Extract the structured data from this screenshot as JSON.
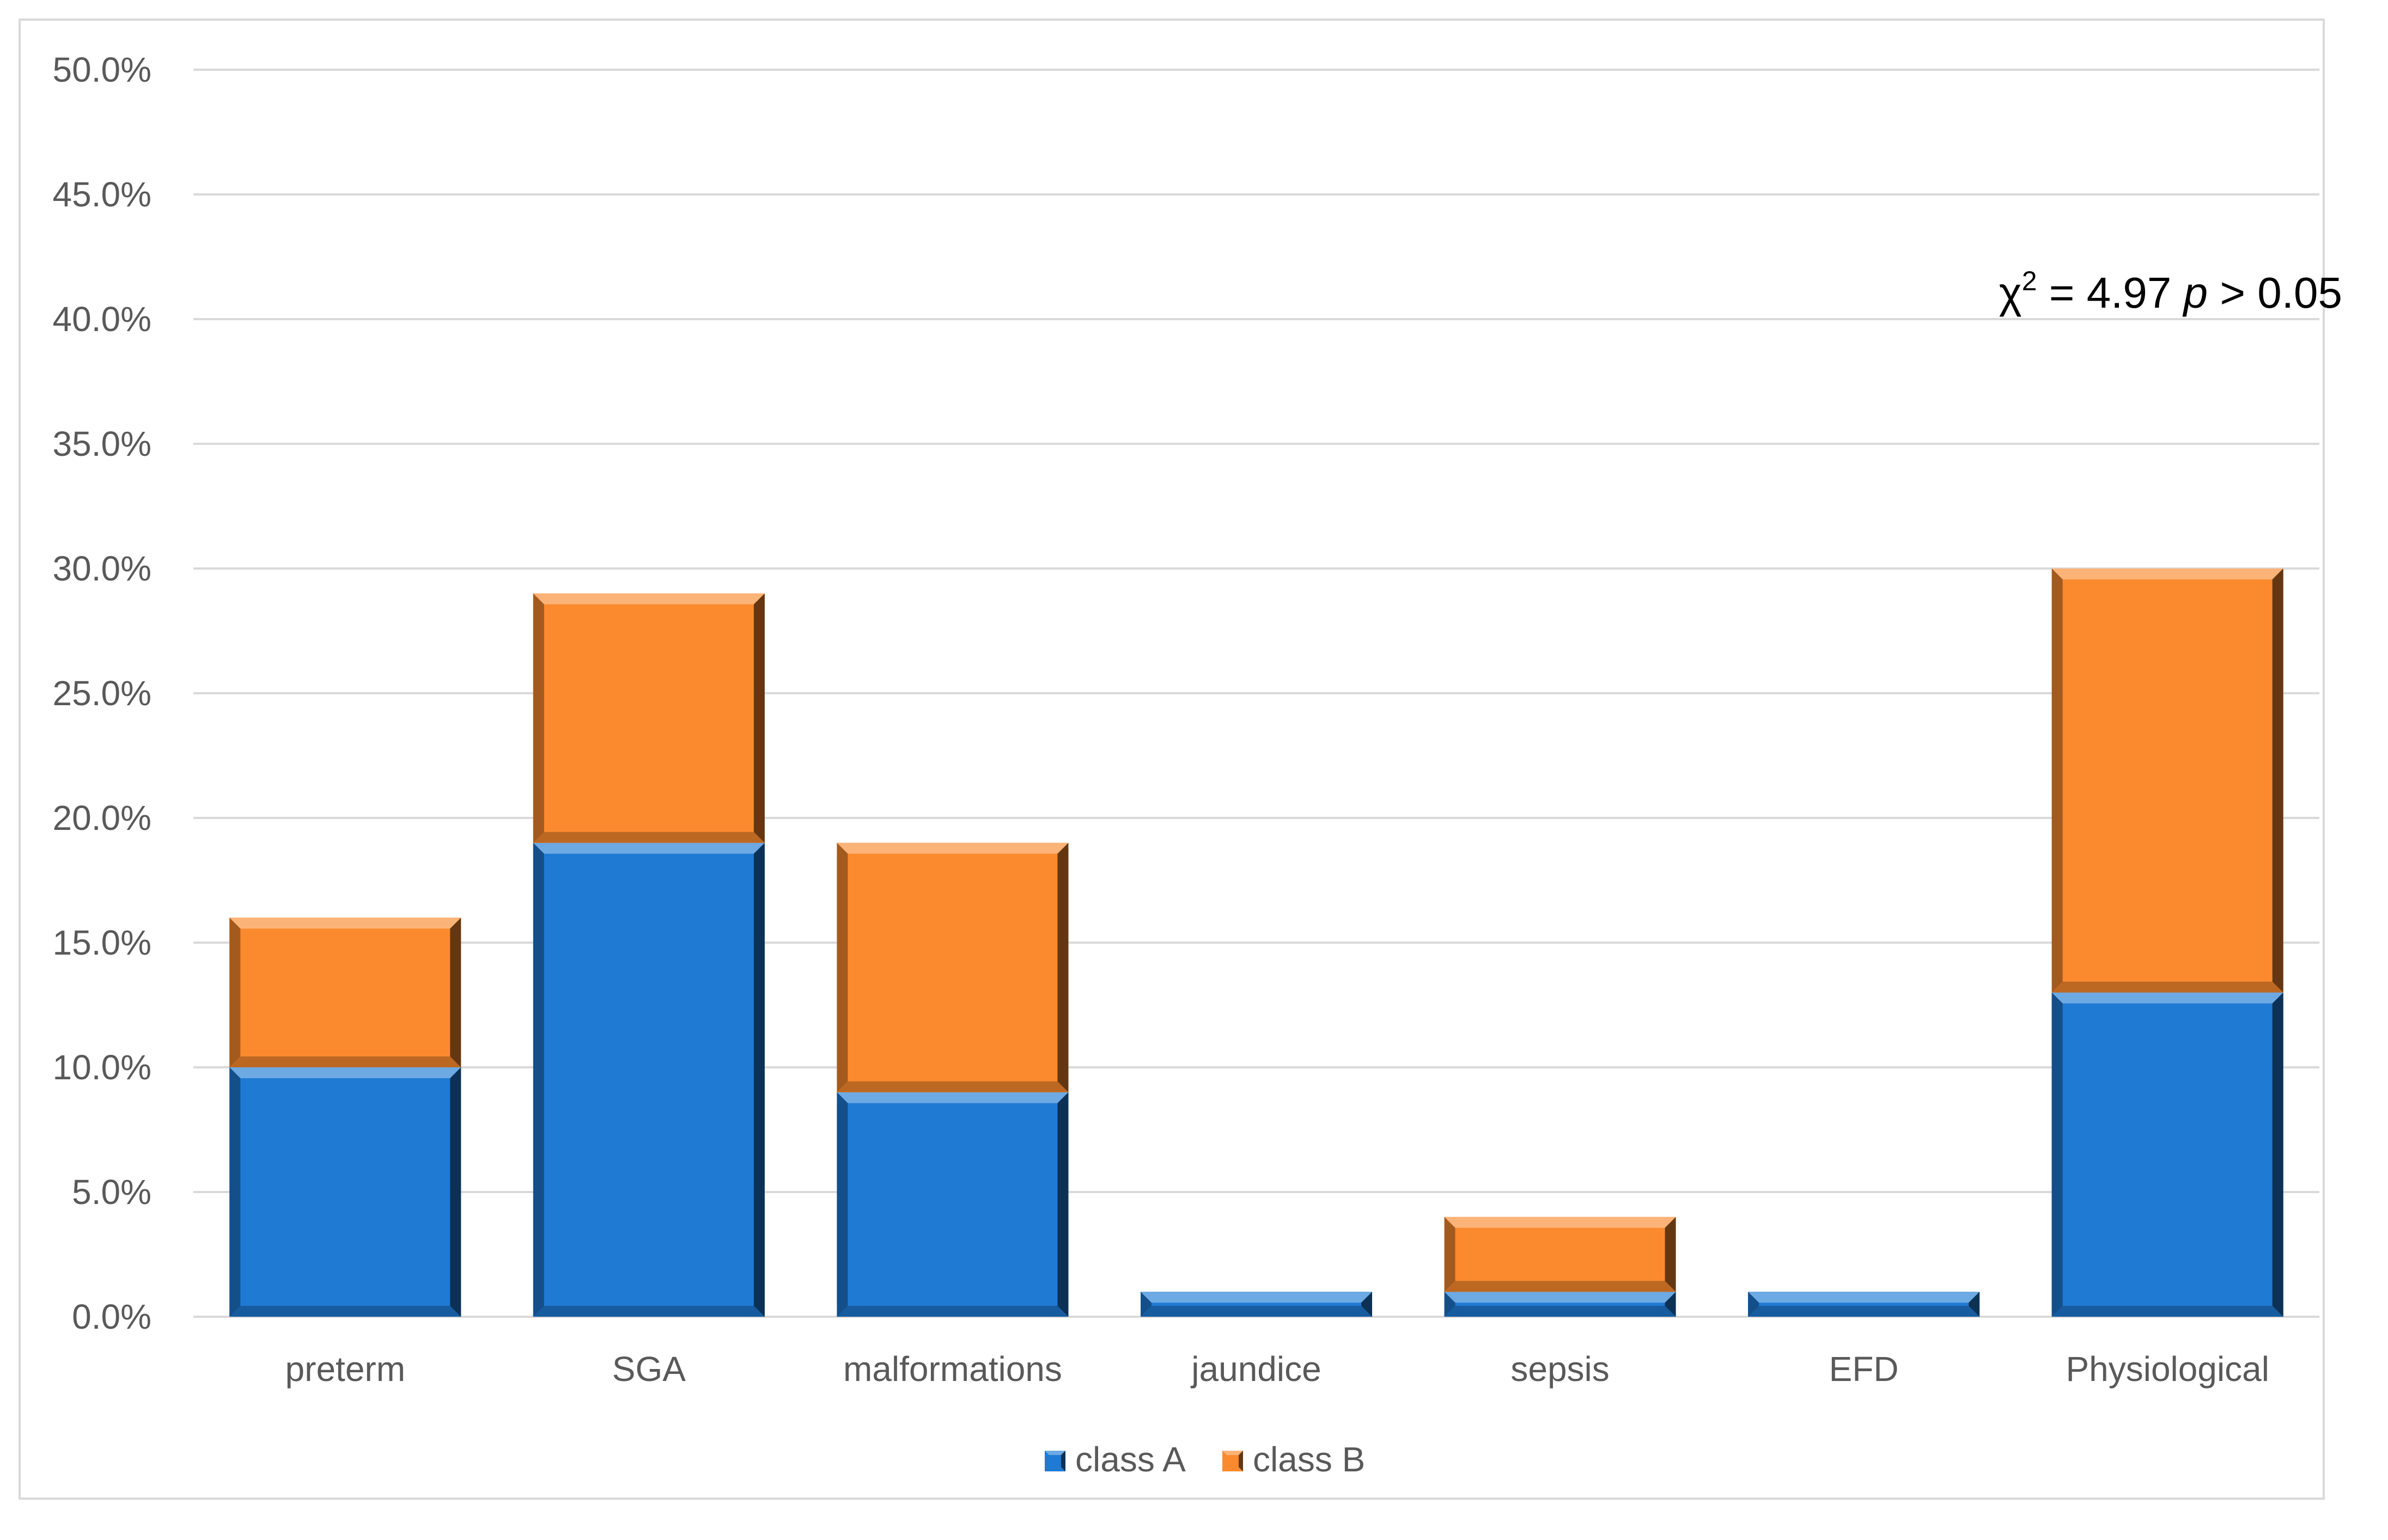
{
  "chart_data": {
    "type": "bar",
    "stacked": true,
    "categories": [
      "preterm",
      "SGA",
      "malformations",
      "jaundice",
      "sepsis",
      "EFD",
      "Physiological"
    ],
    "series": [
      {
        "name": "class A",
        "color": "#1f7ad4",
        "values": [
          10.0,
          19.0,
          9.0,
          1.0,
          1.0,
          1.0,
          13.0
        ]
      },
      {
        "name": "class B",
        "color": "#fb8a2e",
        "values": [
          6.0,
          10.0,
          10.0,
          0.0,
          3.0,
          0.0,
          17.0
        ]
      }
    ],
    "ylim": [
      0,
      50
    ],
    "yticks": [
      0,
      5,
      10,
      15,
      20,
      25,
      30,
      35,
      40,
      45,
      50
    ],
    "ytick_labels": [
      "0.0%",
      "5.0%",
      "10.0%",
      "15.0%",
      "20.0%",
      "25.0%",
      "30.0%",
      "35.0%",
      "40.0%",
      "45.0%",
      "50.0%"
    ],
    "grid": true,
    "legend_position": "bottom",
    "annotation": {
      "chi": "χ",
      "sup": "2",
      "eq": " = 4.97 ",
      "p": "p",
      "rest": " > 0.05"
    }
  }
}
